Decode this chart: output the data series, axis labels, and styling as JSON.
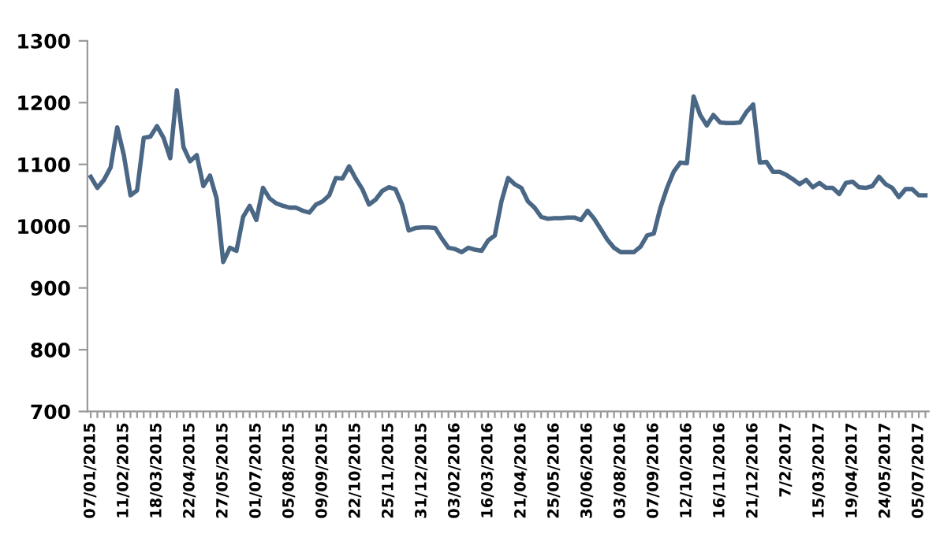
{
  "chart_data": {
    "type": "line",
    "categories": [
      "07/01/2015",
      null,
      null,
      null,
      null,
      "11/02/2015",
      null,
      null,
      null,
      null,
      "18/03/2015",
      null,
      null,
      null,
      null,
      "22/04/2015",
      null,
      null,
      null,
      null,
      "27/05/2015",
      null,
      null,
      null,
      null,
      "01/07/2015",
      null,
      null,
      null,
      null,
      "05/08/2015",
      null,
      null,
      null,
      null,
      "09/09/2015",
      null,
      null,
      null,
      null,
      "22/10/2015",
      null,
      null,
      null,
      null,
      "25/11/2015",
      null,
      null,
      null,
      null,
      "31/12/2015",
      null,
      null,
      null,
      null,
      "03/02/2016",
      null,
      null,
      null,
      null,
      "16/03/2016",
      null,
      null,
      null,
      null,
      "21/04/2016",
      null,
      null,
      null,
      null,
      "25/05/2016",
      null,
      null,
      null,
      null,
      "30/06/2016",
      null,
      null,
      null,
      null,
      "03/08/2016",
      null,
      null,
      null,
      null,
      "07/09/2016",
      null,
      null,
      null,
      null,
      "12/10/2016",
      null,
      null,
      null,
      null,
      "16/11/2016",
      null,
      null,
      null,
      null,
      "21/12/2016",
      null,
      null,
      null,
      null,
      "7/2/2017",
      null,
      null,
      null,
      null,
      "15/03/2017",
      null,
      null,
      null,
      null,
      "19/04/2017",
      null,
      null,
      null,
      null,
      "24/05/2017",
      null,
      null,
      null,
      null,
      "05/07/2017",
      null
    ],
    "series": [
      {
        "color": "#4a6785",
        "values": [
          1080,
          1062,
          1075,
          1095,
          1160,
          1115,
          1050,
          1058,
          1143,
          1145,
          1162,
          1143,
          1110,
          1220,
          1128,
          1105,
          1115,
          1065,
          1082,
          1045,
          942,
          965,
          960,
          1015,
          1033,
          1010,
          1062,
          1045,
          1037,
          1033,
          1030,
          1030,
          1025,
          1022,
          1035,
          1040,
          1050,
          1078,
          1077,
          1097,
          1077,
          1060,
          1035,
          1043,
          1057,
          1063,
          1060,
          1035,
          993,
          997,
          998,
          998,
          997,
          980,
          965,
          963,
          958,
          965,
          962,
          960,
          977,
          985,
          1040,
          1078,
          1068,
          1062,
          1040,
          1030,
          1015,
          1012,
          1013,
          1013,
          1014,
          1014,
          1010,
          1025,
          1012,
          995,
          978,
          965,
          958,
          958,
          958,
          967,
          985,
          988,
          1030,
          1062,
          1088,
          1103,
          1102,
          1210,
          1180,
          1163,
          1180,
          1168,
          1167,
          1167,
          1168,
          1185,
          1197,
          1103,
          1104,
          1088,
          1088,
          1083,
          1076,
          1068,
          1075,
          1063,
          1070,
          1062,
          1062,
          1052,
          1070,
          1072,
          1063,
          1062,
          1065,
          1080,
          1068,
          1062,
          1047,
          1060,
          1060,
          1050,
          1050
        ]
      }
    ],
    "ylim": [
      700,
      1300
    ],
    "yticks": [
      700,
      800,
      900,
      1000,
      1100,
      1200,
      1300
    ],
    "grid": false,
    "legend": false,
    "marker": "none",
    "line_style": "solid"
  }
}
